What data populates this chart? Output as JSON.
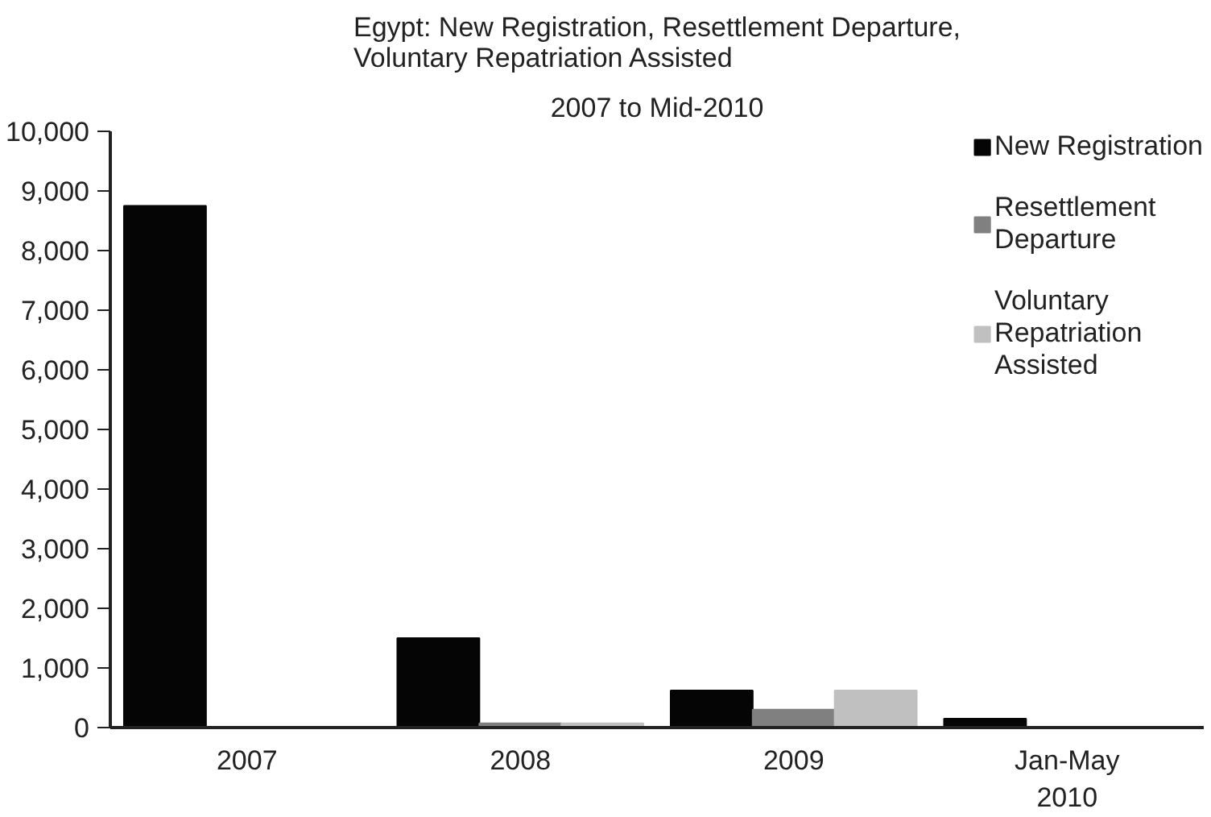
{
  "chart_data": {
    "type": "bar",
    "title": "Egypt: New Registration, Resettlement Departure, Voluntary Repatriation Assisted",
    "subtitle": "2007 to Mid-2010",
    "categories": [
      "2007",
      "2008",
      "2009",
      "Jan-May 2010"
    ],
    "series": [
      {
        "name": "New Registration",
        "color": "#050505",
        "values": [
          8750,
          1500,
          620,
          150
        ]
      },
      {
        "name": "Resettlement Departure",
        "color": "#808080",
        "values": [
          0,
          70,
          300,
          0
        ]
      },
      {
        "name": "Voluntary Repatriation Assisted",
        "color": "#c0c0c0",
        "values": [
          0,
          70,
          620,
          0
        ]
      }
    ],
    "ylim": [
      0,
      10000
    ],
    "yticks": [
      {
        "value": 0,
        "label": "0"
      },
      {
        "value": 1000,
        "label": "1,000"
      },
      {
        "value": 2000,
        "label": "2,000"
      },
      {
        "value": 3000,
        "label": "3,000"
      },
      {
        "value": 4000,
        "label": "4,000"
      },
      {
        "value": 5000,
        "label": "5,000"
      },
      {
        "value": 6000,
        "label": "6,000"
      },
      {
        "value": 7000,
        "label": "7,000"
      },
      {
        "value": 8000,
        "label": "8,000"
      },
      {
        "value": 9000,
        "label": "9,000"
      },
      {
        "value": 10000,
        "label": "10,000"
      }
    ],
    "grid": false,
    "legend": "top right"
  }
}
